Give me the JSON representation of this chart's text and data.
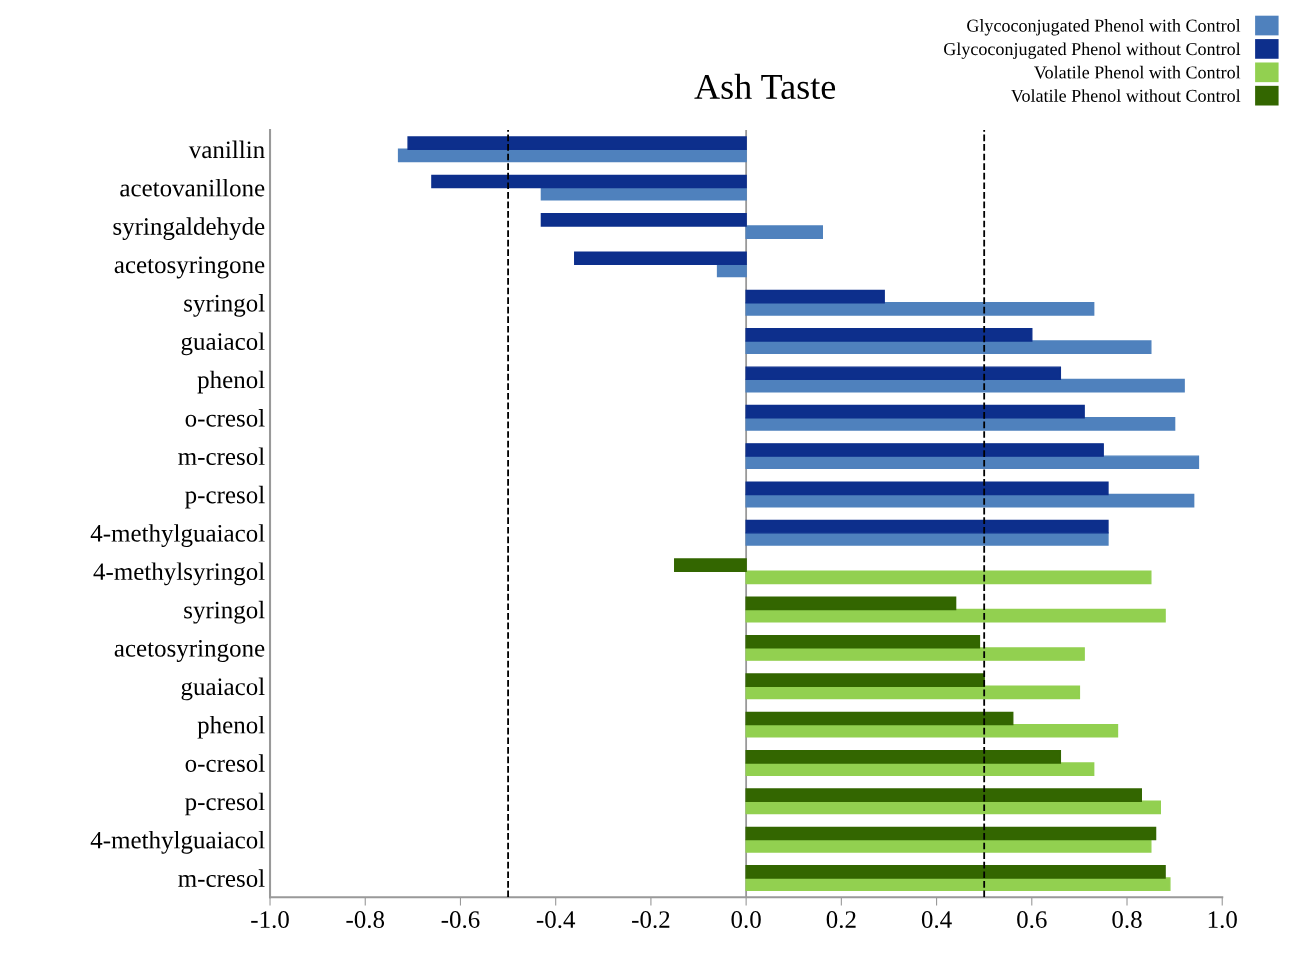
{
  "chart_data": {
    "type": "bar",
    "orientation": "horizontal",
    "title": "Ash Taste",
    "categories": [
      "vanillin",
      "acetovanillone",
      "syringaldehyde",
      "acetosyringone",
      "syringol",
      "guaiacol",
      "phenol",
      "o-cresol",
      "m-cresol",
      "p-cresol",
      "4-methylguaiacol",
      "4-methylsyringol",
      "syringol",
      "acetosyringone",
      "guaiacol",
      "phenol",
      "o-cresol",
      "p-cresol",
      "4-methylguaiacol",
      "m-cresol"
    ],
    "series": [
      {
        "name": "Glycoconjugated Phenol with Control",
        "color": "#4f81bd",
        "values": [
          -0.73,
          -0.43,
          0.16,
          -0.06,
          0.73,
          0.85,
          0.92,
          0.9,
          0.95,
          0.94,
          0.76,
          null,
          null,
          null,
          null,
          null,
          null,
          null,
          null,
          null
        ]
      },
      {
        "name": "Glycoconjugated Phenol without Control",
        "color": "#0d2f8c",
        "values": [
          -0.71,
          -0.66,
          -0.43,
          -0.36,
          0.29,
          0.6,
          0.66,
          0.71,
          0.75,
          0.76,
          0.76,
          null,
          null,
          null,
          null,
          null,
          null,
          null,
          null,
          null
        ]
      },
      {
        "name": "Volatile Phenol with Control",
        "color": "#92d050",
        "values": [
          null,
          null,
          null,
          null,
          null,
          null,
          null,
          null,
          null,
          null,
          null,
          0.85,
          0.88,
          0.71,
          0.7,
          0.78,
          0.73,
          0.87,
          0.85,
          0.89
        ]
      },
      {
        "name": "Volatile Phenol without Control",
        "color": "#336600",
        "values": [
          null,
          null,
          null,
          null,
          null,
          null,
          null,
          null,
          null,
          null,
          null,
          -0.15,
          0.44,
          0.49,
          0.5,
          0.56,
          0.66,
          0.83,
          0.86,
          0.88
        ]
      }
    ],
    "xlim": [
      -1.0,
      1.0
    ],
    "xticks": [
      {
        "value": -1.0,
        "label": "-1.0"
      },
      {
        "value": -0.8,
        "label": "-0.8"
      },
      {
        "value": -0.6,
        "label": "-0.6"
      },
      {
        "value": -0.4,
        "label": "-0.4"
      },
      {
        "value": -0.2,
        "label": "-0.2"
      },
      {
        "value": 0.0,
        "label": "0.0"
      },
      {
        "value": 0.2,
        "label": "0.2"
      },
      {
        "value": 0.4,
        "label": "0.4"
      },
      {
        "value": 0.6,
        "label": "0.6"
      },
      {
        "value": 0.8,
        "label": "0.8"
      },
      {
        "value": 1.0,
        "label": "1.0"
      }
    ],
    "ref_lines": [
      {
        "axis": "x",
        "value": -0.5,
        "color": "#000000",
        "line_style": "dashed"
      },
      {
        "axis": "x",
        "value": 0.5,
        "color": "#000000",
        "line_style": "dashed"
      },
      {
        "axis": "x",
        "value": 0.0,
        "color": "#999999",
        "line_style": "solid"
      }
    ],
    "grid": false,
    "legend": "top right"
  }
}
